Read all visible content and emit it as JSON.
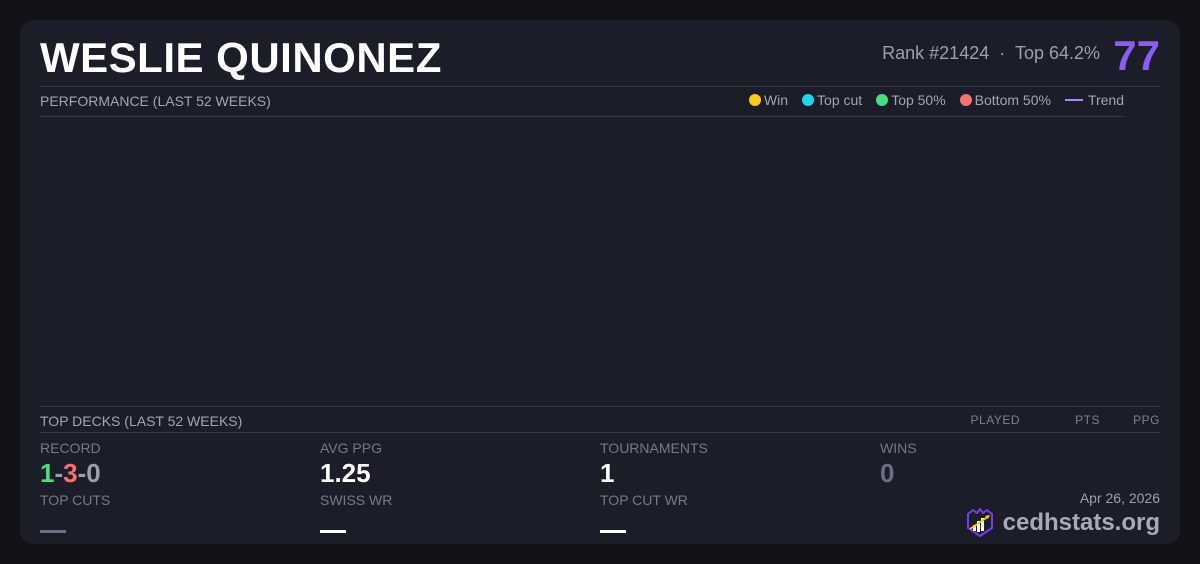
{
  "player": {
    "name": "WESLIE QUINONEZ",
    "rank": "Rank #21424",
    "separator": "·",
    "top_percent": "Top 64.2%",
    "score": "77"
  },
  "performance": {
    "title": "PERFORMANCE (LAST 52 WEEKS)",
    "legend": [
      {
        "label": "Win",
        "color": "#facc15"
      },
      {
        "label": "Top cut",
        "color": "#22d3ee"
      },
      {
        "label": "Top 50%",
        "color": "#4ade80"
      },
      {
        "label": "Bottom 50%",
        "color": "#f87171"
      },
      {
        "label": "Trend",
        "color": "#a78bfa"
      }
    ]
  },
  "top_decks": {
    "title": "TOP DECKS (LAST 52 WEEKS)",
    "columns": [
      "PLAYED",
      "PTS",
      "PPG"
    ]
  },
  "stats": {
    "record": {
      "label": "RECORD",
      "wins": "1",
      "losses": "3",
      "draws": "0",
      "sep": "-"
    },
    "avg_ppg": {
      "label": "AVG PPG",
      "value": "1.25"
    },
    "tournaments": {
      "label": "TOURNAMENTS",
      "value": "1"
    },
    "wins": {
      "label": "WINS",
      "value": "0"
    },
    "top_cuts": {
      "label": "TOP CUTS",
      "value": "—"
    },
    "swiss_wr": {
      "label": "SWISS WR",
      "value": "—"
    },
    "top_cut_wr": {
      "label": "TOP CUT WR",
      "value": "—"
    }
  },
  "footer": {
    "date": "Apr 26, 2026",
    "brand": "cedhstats.org"
  }
}
